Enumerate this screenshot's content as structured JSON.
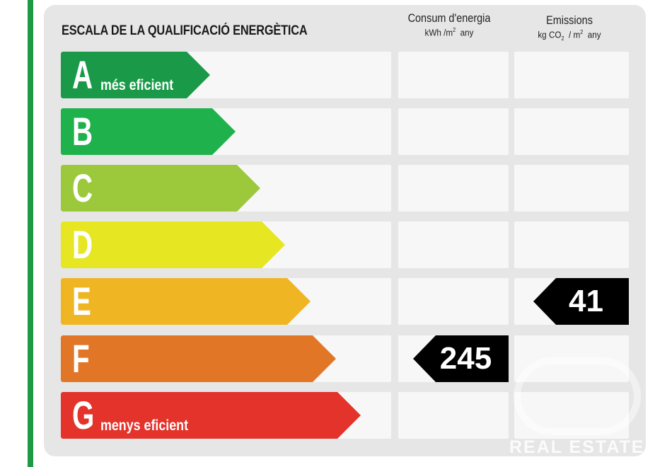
{
  "title": "ESCALA DE LA QUALIFICACIÓ ENERGÈTICA",
  "columns": {
    "consumption": {
      "label": "Consum d'energia",
      "unit_pre": "kWh /m",
      "unit_sup": "2",
      "unit_post": "any"
    },
    "emissions": {
      "label": "Emissions",
      "unit_pre": "kg CO",
      "unit_sub": "2",
      "unit_mid": "/ m",
      "unit_sup": "2",
      "unit_post": "any"
    }
  },
  "ratings": [
    {
      "letter": "A",
      "sublabel": "més eficient",
      "color": "#1a9a48"
    },
    {
      "letter": "B",
      "sublabel": "",
      "color": "#1fb14b"
    },
    {
      "letter": "C",
      "sublabel": "",
      "color": "#9bc93b"
    },
    {
      "letter": "D",
      "sublabel": "",
      "color": "#e7e622"
    },
    {
      "letter": "E",
      "sublabel": "",
      "color": "#efb523"
    },
    {
      "letter": "F",
      "sublabel": "",
      "color": "#e27627"
    },
    {
      "letter": "G",
      "sublabel": "menys eficient",
      "color": "#e3332b"
    }
  ],
  "consumption_value": {
    "rating": "F",
    "value": "245"
  },
  "emissions_value": {
    "rating": "E",
    "value": "41"
  },
  "watermark": "REAL ESTATE"
}
